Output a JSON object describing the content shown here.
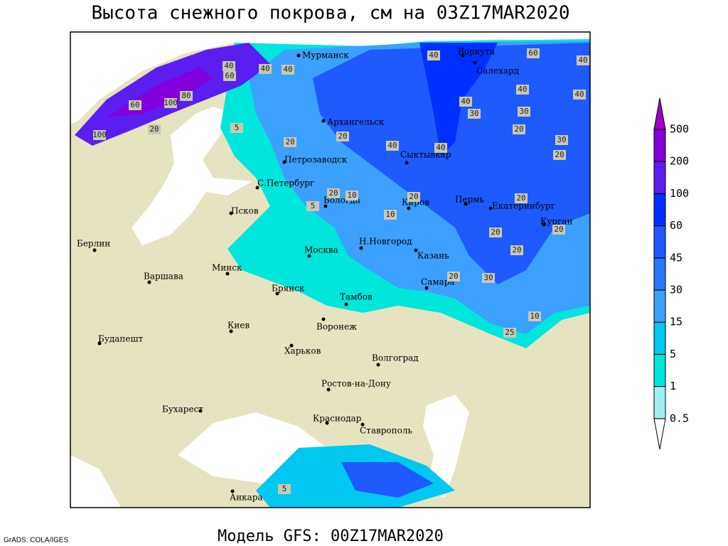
{
  "header": {
    "title": "Высота снежного покрова, см на 03Z17MAR2020"
  },
  "footer": {
    "model": "Модель GFS: 00Z17MAR2020",
    "credit": "GrADS: COLA/IGES"
  },
  "legend": {
    "levels": [
      0.5,
      1,
      5,
      15,
      30,
      45,
      60,
      100,
      200,
      500
    ],
    "colors": [
      "#ffffff",
      "#a0f0f0",
      "#00e6dc",
      "#00c8f0",
      "#3ca0ff",
      "#2878ff",
      "#1e5aff",
      "#0030ff",
      "#5a1ef0",
      "#8200dc",
      "#a000c8"
    ]
  },
  "map": {
    "cities": [
      "Мурманск",
      "Воркута",
      "Салехард",
      "Архангельск",
      "Сыктывкар",
      "Петрозаводск",
      "С.Петербург",
      "Вологда",
      "Киров",
      "Пермь",
      "Екатеринбург",
      "Курган",
      "Псков",
      "Москва",
      "Н.Новгород",
      "Казань",
      "Берлин",
      "Варшава",
      "Минск",
      "Брянск",
      "Тамбов",
      "Самара",
      "Киев",
      "Воронеж",
      "Будапешт",
      "Харьков",
      "Волгоград",
      "Ростов-на-Дону",
      "Бухарест",
      "Краснодар",
      "Ставрополь",
      "Анкара"
    ],
    "contour_labels": [
      60,
      40,
      40,
      40,
      40,
      40,
      60,
      80,
      100,
      60,
      100,
      20,
      5,
      20,
      20,
      40,
      40,
      40,
      30,
      40,
      40,
      30,
      20,
      30,
      20,
      20,
      20,
      10,
      20,
      5,
      10,
      20,
      20,
      20,
      30,
      20,
      25,
      10,
      5
    ]
  }
}
